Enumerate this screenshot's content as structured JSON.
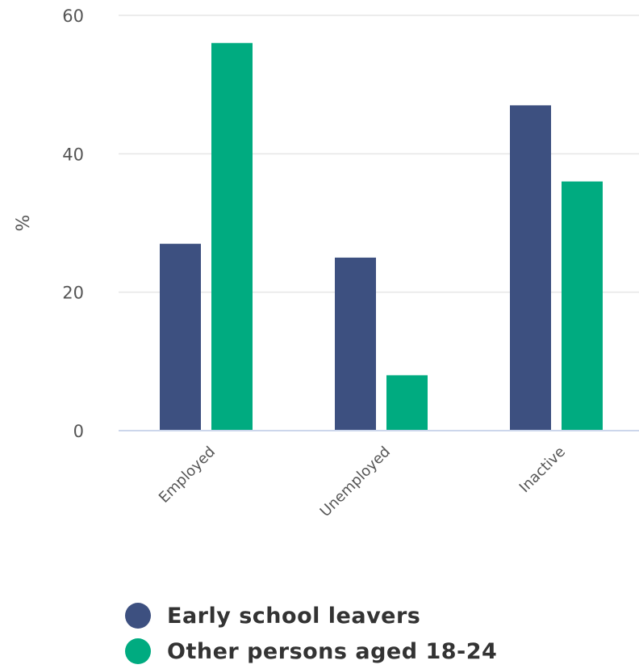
{
  "chart_data": {
    "type": "bar",
    "categories": [
      "Employed",
      "Unemployed",
      "Inactive"
    ],
    "series": [
      {
        "name": "Early school leavers",
        "color": "#3d5080",
        "values": [
          27,
          25,
          47
        ]
      },
      {
        "name": "Other persons aged 18-24",
        "color": "#00ab80",
        "values": [
          56,
          8,
          36
        ]
      }
    ],
    "ylabel": "%",
    "ylim": [
      0,
      60
    ],
    "yticks": [
      0,
      20,
      40,
      60
    ],
    "grid": true,
    "legend_position": "bottom-left"
  }
}
